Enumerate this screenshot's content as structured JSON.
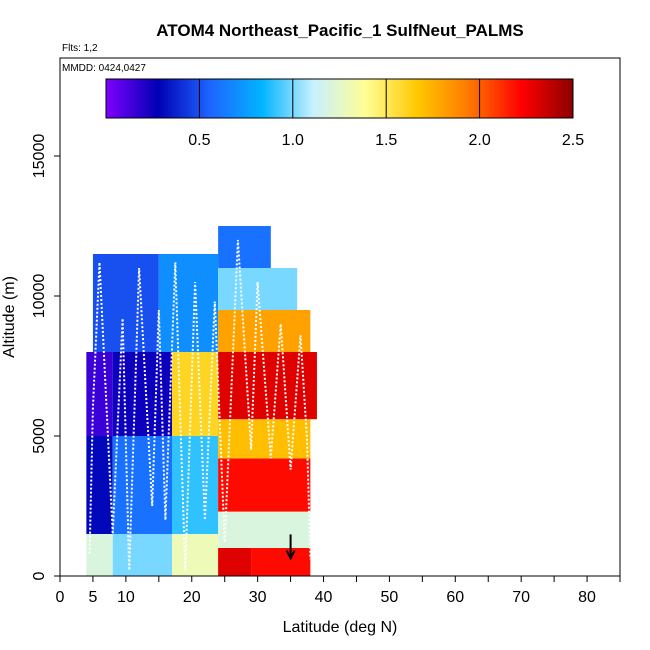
{
  "chart_data": {
    "type": "heatmap",
    "title": "ATOM4 Northeast_Pacific_1 SulfNeut_PALMS",
    "flights_label": "Flts: 1,2",
    "date_label": "MMDD: 0424,0427",
    "xlabel": "Latitude (deg N)",
    "ylabel": "Altitude (m)",
    "xlim": [
      0,
      85
    ],
    "ylim": [
      0,
      18500
    ],
    "x_ticks": [
      0,
      5,
      10,
      20,
      30,
      40,
      50,
      60,
      70,
      80
    ],
    "x_minor_ticks": [
      15,
      25,
      35,
      45,
      55,
      65,
      75,
      85
    ],
    "y_ticks": [
      0,
      5000,
      10000,
      15000
    ],
    "grid": false,
    "colorbar": {
      "position": "top-inside",
      "min": 0,
      "max": 2.5,
      "ticks": [
        0.5,
        1.0,
        1.5,
        2.0,
        2.5
      ],
      "tick_labels": [
        "0.5",
        "1.0",
        "1.5",
        "2.0",
        "2.5"
      ],
      "colors": [
        "#7f00ff",
        "#0000b4",
        "#1e64ff",
        "#00b4ff",
        "#c8f0ff",
        "#ffff96",
        "#ffc800",
        "#ff7800",
        "#ff0000",
        "#8c0000"
      ]
    },
    "cells": [
      {
        "x0": 4,
        "x1": 8,
        "y0": 0,
        "y1": 1500,
        "v": 1.2
      },
      {
        "x0": 8,
        "x1": 17,
        "y0": 0,
        "y1": 1500,
        "v": 1.0
      },
      {
        "x0": 17,
        "x1": 24,
        "y0": 0,
        "y1": 1500,
        "v": 1.3
      },
      {
        "x0": 4,
        "x1": 8,
        "y0": 1500,
        "y1": 5000,
        "v": 0.3
      },
      {
        "x0": 8,
        "x1": 17,
        "y0": 1500,
        "y1": 5000,
        "v": 0.6
      },
      {
        "x0": 17,
        "x1": 24,
        "y0": 1500,
        "y1": 5000,
        "v": 0.9
      },
      {
        "x0": 4,
        "x1": 8,
        "y0": 5000,
        "y1": 8000,
        "v": 0.15
      },
      {
        "x0": 8,
        "x1": 17,
        "y0": 5000,
        "y1": 8000,
        "v": 0.25
      },
      {
        "x0": 17,
        "x1": 24,
        "y0": 5000,
        "y1": 8000,
        "v": 1.6
      },
      {
        "x0": 5,
        "x1": 15,
        "y0": 8000,
        "y1": 11500,
        "v": 0.5
      },
      {
        "x0": 15,
        "x1": 24,
        "y0": 8000,
        "y1": 11500,
        "v": 0.7
      },
      {
        "x0": 24,
        "x1": 29,
        "y0": 0,
        "y1": 1000,
        "v": 2.3
      },
      {
        "x0": 29,
        "x1": 38,
        "y0": 0,
        "y1": 1000,
        "v": 2.2
      },
      {
        "x0": 24,
        "x1": 38,
        "y0": 1000,
        "y1": 2300,
        "v": 1.2
      },
      {
        "x0": 24,
        "x1": 38,
        "y0": 2300,
        "y1": 4200,
        "v": 2.2
      },
      {
        "x0": 24,
        "x1": 38,
        "y0": 4200,
        "y1": 5600,
        "v": 1.7
      },
      {
        "x0": 24,
        "x1": 39,
        "y0": 5600,
        "y1": 8000,
        "v": 2.3
      },
      {
        "x0": 24,
        "x1": 38,
        "y0": 8000,
        "y1": 9500,
        "v": 1.8
      },
      {
        "x0": 24,
        "x1": 36,
        "y0": 9500,
        "y1": 11000,
        "v": 1.0
      },
      {
        "x0": 24,
        "x1": 32,
        "y0": 11000,
        "y1": 12500,
        "v": 0.6
      }
    ],
    "flight_track": [
      [
        4.5,
        800
      ],
      [
        5,
        6000
      ],
      [
        6,
        11200
      ],
      [
        8,
        1500
      ],
      [
        9.5,
        9200
      ],
      [
        10.5,
        200
      ],
      [
        12,
        11000
      ],
      [
        14,
        2500
      ],
      [
        15,
        9500
      ],
      [
        16,
        2000
      ],
      [
        17.5,
        11200
      ],
      [
        19,
        200
      ],
      [
        20.5,
        10500
      ],
      [
        22,
        2000
      ],
      [
        23.5,
        9800
      ],
      [
        25,
        1200
      ],
      [
        27,
        12000
      ],
      [
        29,
        4500
      ],
      [
        30,
        10500
      ],
      [
        32,
        4200
      ],
      [
        33.5,
        9000
      ],
      [
        35,
        3800
      ],
      [
        36.5,
        8600
      ],
      [
        37.5,
        4800
      ],
      [
        38,
        600
      ]
    ],
    "marker": {
      "x": 35,
      "y": 700,
      "symbol": "down-arrow"
    }
  }
}
